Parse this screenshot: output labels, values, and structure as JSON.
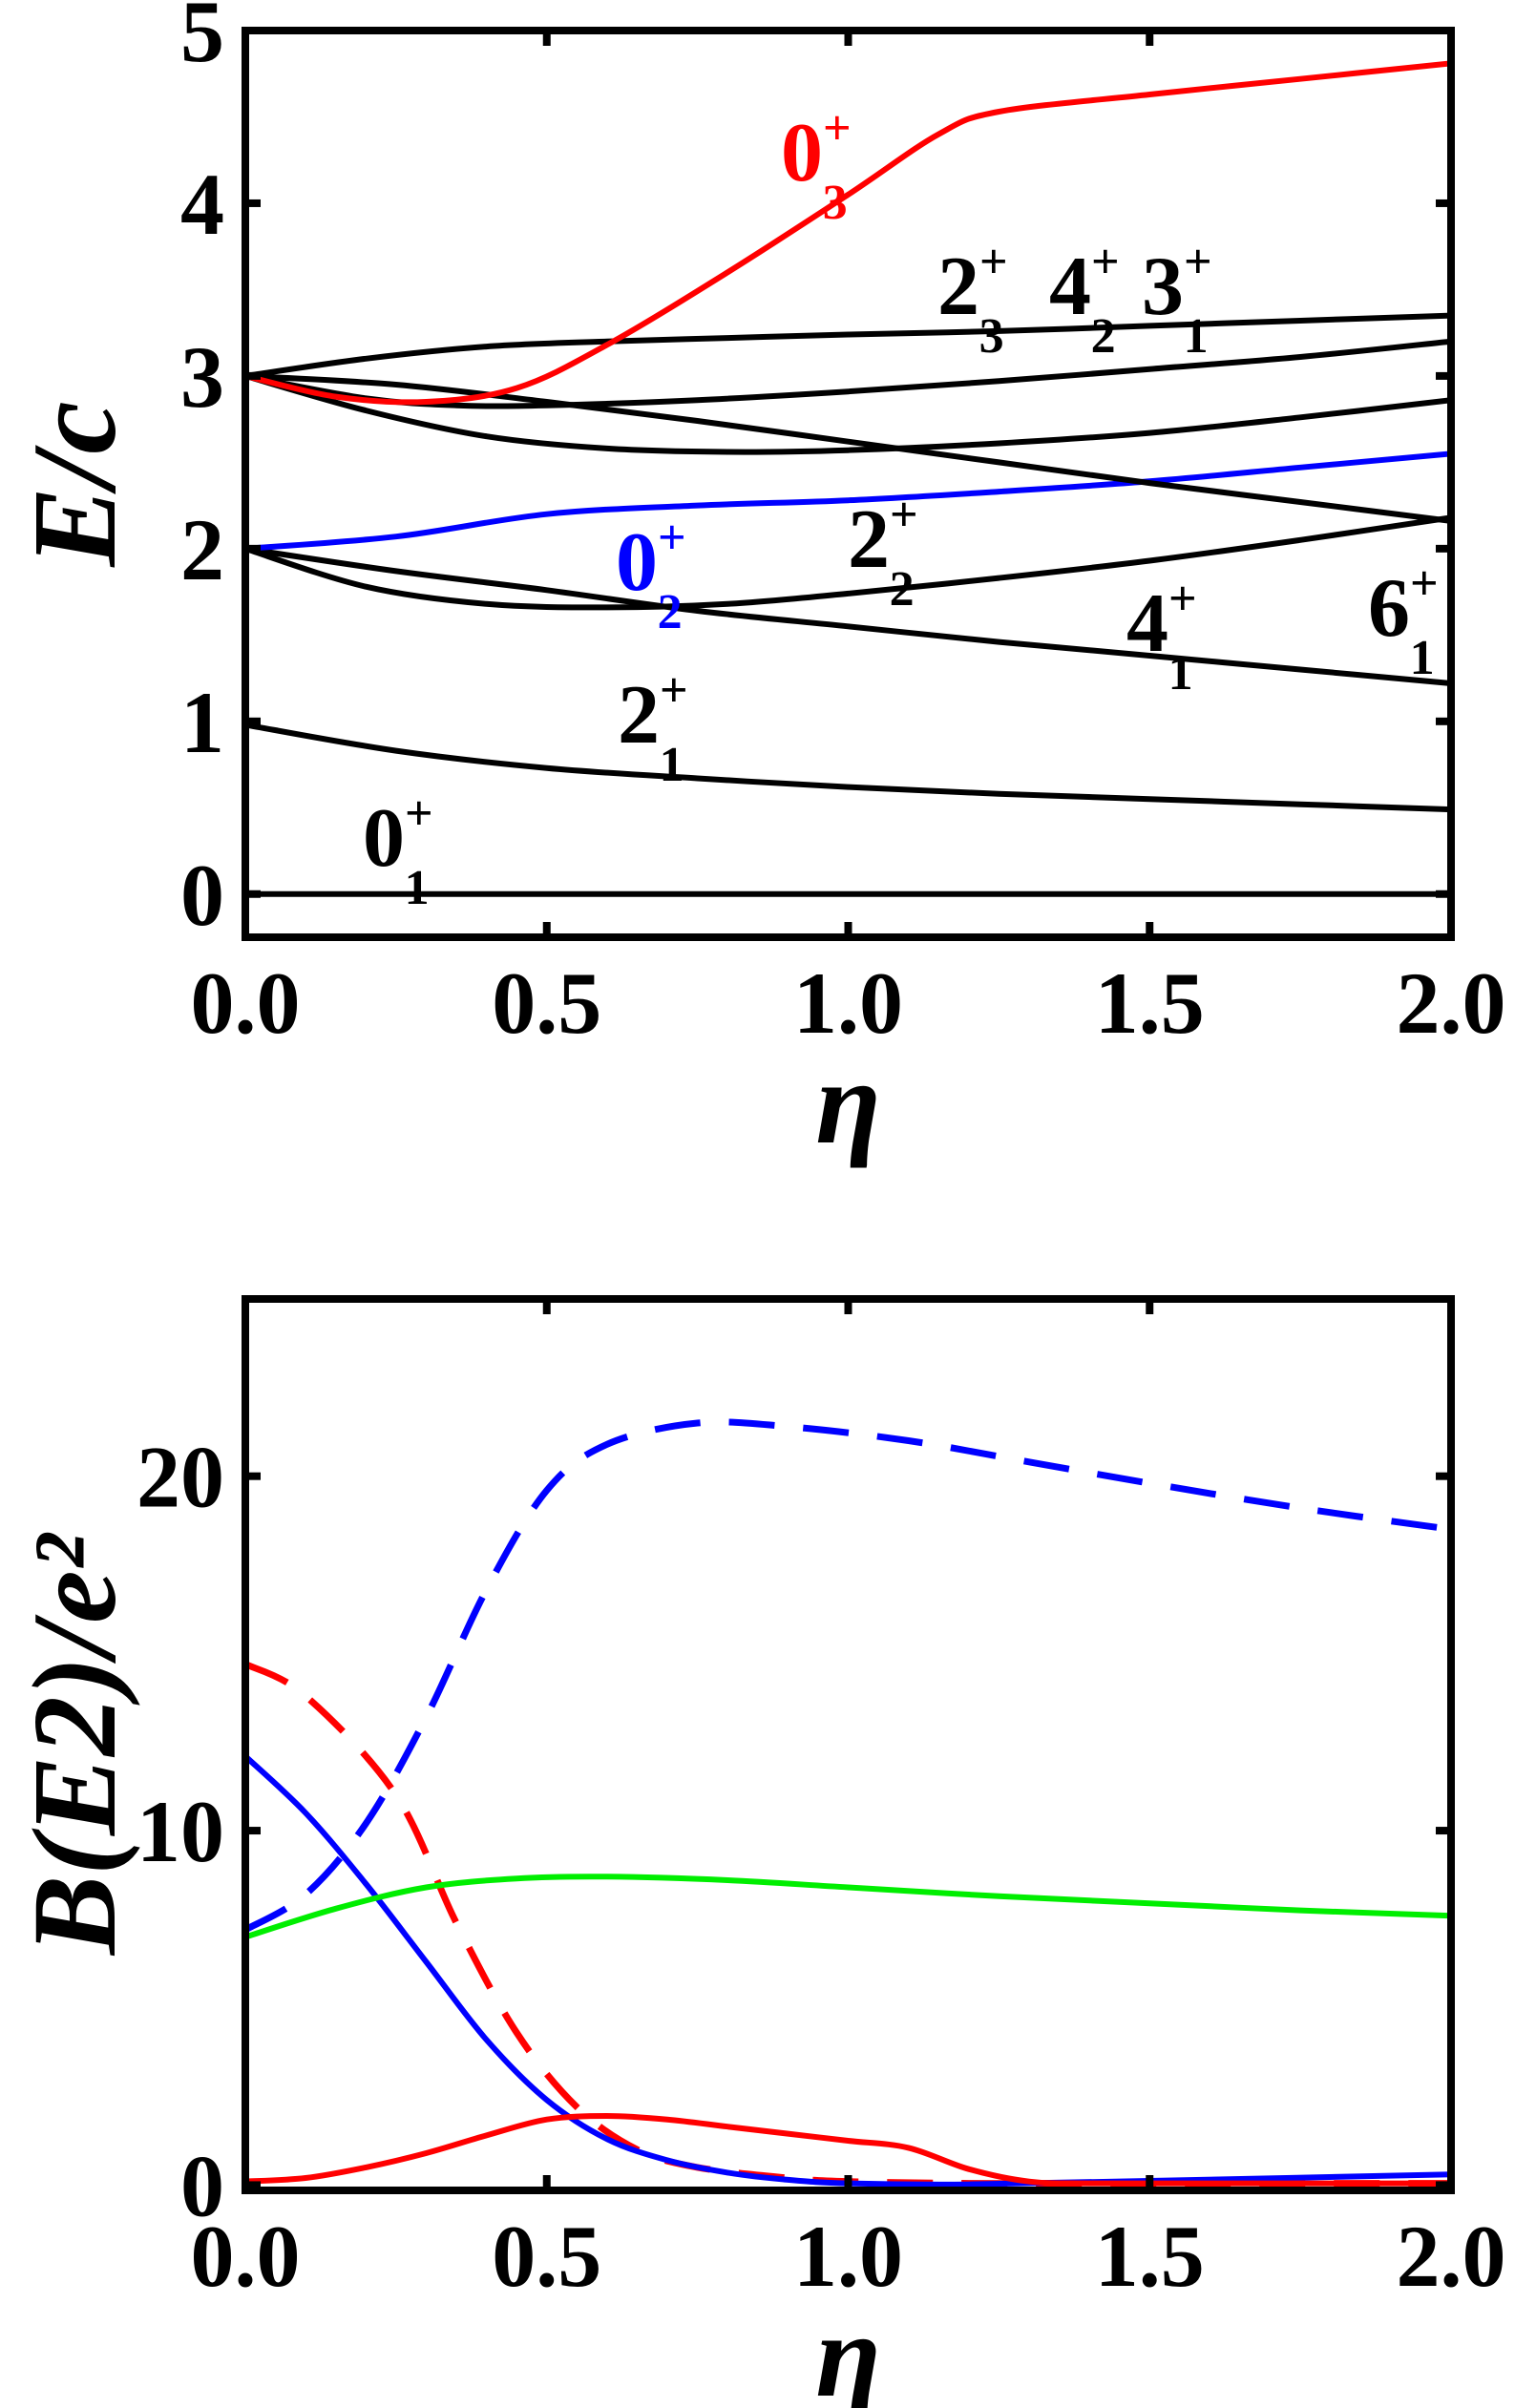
{
  "chart_data": [
    {
      "type": "line",
      "title": "",
      "xlabel": "η",
      "ylabel": "E/c",
      "xlim": [
        0,
        2
      ],
      "ylim": [
        -0.25,
        5
      ],
      "xticks": [
        "0.0",
        "0.5",
        "1.0",
        "1.5",
        "2.0"
      ],
      "xtick_values": [
        0,
        0.5,
        1,
        1.5,
        2
      ],
      "yticks": [
        "0",
        "1",
        "2",
        "3",
        "4",
        "5"
      ],
      "ytick_values": [
        0,
        1,
        2,
        3,
        4,
        5
      ],
      "grid": false,
      "series": [
        {
          "name": "0_1+",
          "color": "#000000",
          "dash": false,
          "x": [
            0,
            0.5,
            1,
            1.5,
            2
          ],
          "y": [
            0,
            0,
            0,
            0,
            0
          ]
        },
        {
          "name": "2_1+",
          "color": "#000000",
          "dash": false,
          "x": [
            0,
            0.25,
            0.5,
            0.75,
            1,
            1.25,
            1.5,
            1.75,
            2
          ],
          "y": [
            0.98,
            0.83,
            0.73,
            0.67,
            0.62,
            0.58,
            0.55,
            0.52,
            0.49
          ]
        },
        {
          "name": "4_1+",
          "color": "#000000",
          "dash": false,
          "x": [
            0,
            0.25,
            0.5,
            0.75,
            1,
            1.25,
            1.5,
            1.75,
            2
          ],
          "y": [
            2.0,
            1.87,
            1.76,
            1.64,
            1.55,
            1.46,
            1.38,
            1.3,
            1.22
          ]
        },
        {
          "name": "2_2+",
          "color": "#000000",
          "dash": false,
          "x": [
            0,
            0.2,
            0.4,
            0.6,
            0.8,
            1,
            1.25,
            1.5,
            1.75,
            2
          ],
          "y": [
            2.0,
            1.78,
            1.68,
            1.66,
            1.68,
            1.74,
            1.83,
            1.93,
            2.05,
            2.18
          ]
        },
        {
          "name": "0_2+",
          "color": "#0000ff",
          "dash": false,
          "x": [
            0,
            0.25,
            0.5,
            0.75,
            1,
            1.25,
            1.5,
            1.75,
            2
          ],
          "y": [
            2.0,
            2.07,
            2.2,
            2.25,
            2.28,
            2.33,
            2.39,
            2.47,
            2.55
          ]
        },
        {
          "name": "6_1+",
          "color": "#000000",
          "dash": false,
          "x": [
            0,
            0.25,
            0.5,
            0.75,
            1,
            1.25,
            1.5,
            1.75,
            2
          ],
          "y": [
            3.0,
            2.95,
            2.85,
            2.74,
            2.62,
            2.5,
            2.38,
            2.27,
            2.16
          ]
        },
        {
          "name": "4_2+",
          "color": "#000000",
          "dash": false,
          "x": [
            0,
            0.2,
            0.4,
            0.6,
            0.8,
            1,
            1.25,
            1.5,
            1.75,
            2
          ],
          "y": [
            3.0,
            2.8,
            2.65,
            2.58,
            2.56,
            2.57,
            2.61,
            2.67,
            2.76,
            2.86
          ]
        },
        {
          "name": "3_1+",
          "color": "#000000",
          "dash": false,
          "x": [
            0,
            0.2,
            0.35,
            0.5,
            0.75,
            1,
            1.25,
            1.5,
            1.75,
            2
          ],
          "y": [
            3.0,
            2.87,
            2.83,
            2.83,
            2.86,
            2.91,
            2.97,
            3.04,
            3.11,
            3.2
          ]
        },
        {
          "name": "2_3+",
          "color": "#000000",
          "dash": false,
          "x": [
            0,
            0.2,
            0.4,
            0.6,
            0.8,
            1,
            1.25,
            1.5,
            1.75,
            2
          ],
          "y": [
            3.0,
            3.1,
            3.17,
            3.2,
            3.22,
            3.24,
            3.26,
            3.29,
            3.32,
            3.35
          ]
        },
        {
          "name": "0_3+",
          "color": "#ff0000",
          "dash": false,
          "x": [
            0,
            0.15,
            0.3,
            0.45,
            0.6,
            0.8,
            1.0,
            1.15,
            1.25,
            1.5,
            1.75,
            2
          ],
          "y": [
            3.0,
            2.88,
            2.85,
            2.93,
            3.18,
            3.6,
            4.05,
            4.4,
            4.53,
            4.63,
            4.72,
            4.81
          ]
        }
      ],
      "annotations": [
        {
          "main": "0",
          "sub": "3",
          "sup": "+",
          "color": "#ff0000"
        },
        {
          "main": "2",
          "sub": "3",
          "sup": "+",
          "color": "#000000"
        },
        {
          "main": "4",
          "sub": "2",
          "sup": "+",
          "color": "#000000"
        },
        {
          "main": "3",
          "sub": "1",
          "sup": "+",
          "color": "#000000"
        },
        {
          "main": "0",
          "sub": "2",
          "sup": "+",
          "color": "#0000ff"
        },
        {
          "main": "2",
          "sub": "2",
          "sup": "+",
          "color": "#000000"
        },
        {
          "main": "4",
          "sub": "1",
          "sup": "+",
          "color": "#000000"
        },
        {
          "main": "6",
          "sub": "1",
          "sup": "+",
          "color": "#000000"
        },
        {
          "main": "2",
          "sub": "1",
          "sup": "+",
          "color": "#000000"
        },
        {
          "main": "0",
          "sub": "1",
          "sup": "+",
          "color": "#000000"
        }
      ]
    },
    {
      "type": "line",
      "title": "",
      "xlabel": "η",
      "ylabel": "B(E2)/e²",
      "xlim": [
        0,
        2
      ],
      "ylim": [
        -0.15,
        25
      ],
      "xticks": [
        "0.0",
        "0.5",
        "1.0",
        "1.5",
        "2.0"
      ],
      "xtick_values": [
        0,
        0.5,
        1,
        1.5,
        2
      ],
      "yticks": [
        "0",
        "10",
        "20"
      ],
      "ytick_values": [
        0,
        10,
        20
      ],
      "grid": false,
      "series": [
        {
          "name": "blue-dashed",
          "color": "#0000ff",
          "dash": true,
          "x": [
            0,
            0.1,
            0.2,
            0.3,
            0.4,
            0.5,
            0.6,
            0.75,
            0.9,
            1.1,
            1.3,
            1.5,
            1.75,
            2
          ],
          "y": [
            7.2,
            8.2,
            10.2,
            13.2,
            16.8,
            19.6,
            20.9,
            21.5,
            21.4,
            21.0,
            20.4,
            19.8,
            19.1,
            18.5
          ]
        },
        {
          "name": "red-dashed",
          "color": "#ff0000",
          "dash": true,
          "x": [
            0,
            0.1,
            0.25,
            0.35,
            0.45,
            0.55,
            0.65,
            0.75,
            0.9,
            1.0,
            1.2,
            1.5,
            2
          ],
          "y": [
            14.7,
            13.8,
            11.0,
            7.4,
            4.3,
            2.2,
            1.0,
            0.5,
            0.2,
            0.1,
            0.05,
            0.05,
            0.05
          ]
        },
        {
          "name": "blue-solid",
          "color": "#0000ff",
          "dash": false,
          "x": [
            0,
            0.1,
            0.2,
            0.3,
            0.4,
            0.5,
            0.6,
            0.7,
            0.8,
            0.9,
            1.0,
            1.2,
            1.5,
            2
          ],
          "y": [
            12.1,
            10.5,
            8.5,
            6.3,
            4.1,
            2.4,
            1.3,
            0.7,
            0.35,
            0.15,
            0.05,
            0.02,
            0.12,
            0.3
          ]
        },
        {
          "name": "green-solid",
          "color": "#00ee00",
          "dash": false,
          "x": [
            0,
            0.15,
            0.3,
            0.45,
            0.6,
            0.8,
            1.0,
            1.25,
            1.5,
            1.75,
            2
          ],
          "y": [
            7.0,
            7.8,
            8.4,
            8.65,
            8.7,
            8.6,
            8.4,
            8.15,
            7.95,
            7.75,
            7.6
          ]
        },
        {
          "name": "red-solid",
          "color": "#ff0000",
          "dash": false,
          "x": [
            0,
            0.1,
            0.2,
            0.3,
            0.4,
            0.5,
            0.6,
            0.7,
            0.8,
            0.9,
            1.0,
            1.1,
            1.2,
            1.3,
            1.4,
            1.6,
            2
          ],
          "y": [
            0.1,
            0.2,
            0.5,
            0.9,
            1.4,
            1.85,
            1.95,
            1.85,
            1.65,
            1.45,
            1.25,
            1.05,
            0.45,
            0.1,
            0.05,
            0.05,
            0.05
          ]
        }
      ]
    }
  ]
}
